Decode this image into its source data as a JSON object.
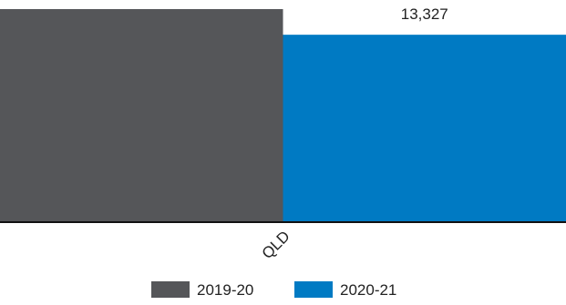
{
  "chart_data": {
    "type": "bar",
    "categories": [
      "QLD"
    ],
    "series": [
      {
        "name": "2019-20",
        "values": [
          15150
        ],
        "color": "#555659"
      },
      {
        "name": "2020-21",
        "values": [
          13327
        ],
        "color": "#007ac3"
      }
    ],
    "data_labels": [
      "",
      "13,327"
    ],
    "title": "",
    "xlabel": "",
    "ylabel": "",
    "ylim": [
      0,
      15150
    ],
    "grid": false,
    "legend_position": "bottom"
  }
}
